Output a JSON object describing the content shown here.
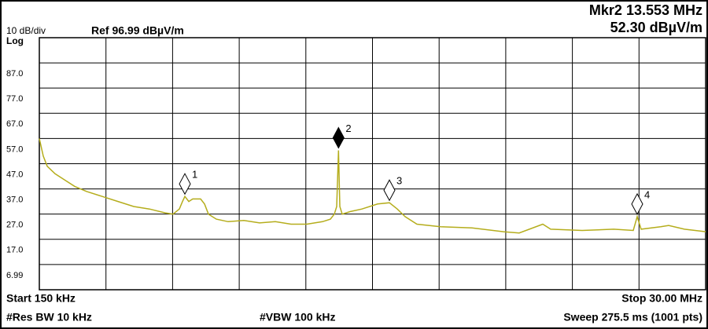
{
  "chart_data": {
    "type": "line",
    "marker_readout": [
      "Mkr2 13.553 MHz",
      "52.30 dBµV/m"
    ],
    "scale_label": "10 dB/div",
    "ref_label": "Ref 96.99 dBµV/m",
    "scale_type_label": "Log",
    "start_label": "Start 150 kHz",
    "stop_label": "Stop 30.00 MHz",
    "rbw_label": "#Res BW 10 kHz",
    "vbw_label": "#VBW 100 kHz",
    "sweep_label": "Sweep  275.5 ms (1001 pts)",
    "xlim": [
      0.15,
      30
    ],
    "ylim": [
      -3.01,
      96.99
    ],
    "yticks": [
      {
        "value": 87,
        "label": "87.0"
      },
      {
        "value": 77,
        "label": "77.0"
      },
      {
        "value": 67,
        "label": "67.0"
      },
      {
        "value": 57,
        "label": "57.0"
      },
      {
        "value": 47,
        "label": "47.0"
      },
      {
        "value": 37,
        "label": "37.0"
      },
      {
        "value": 27,
        "label": "27.0"
      },
      {
        "value": 17,
        "label": "17.0"
      },
      6.99
    ],
    "grid": true,
    "x": [
      0.15,
      0.326,
      0.502,
      0.855,
      1.207,
      1.736,
      2.265,
      2.969,
      3.674,
      4.379,
      5.084,
      5.789,
      6.141,
      6.423,
      6.564,
      6.67,
      6.846,
      7.022,
      7.375,
      7.551,
      7.727,
      8.08,
      8.608,
      9.313,
      10.018,
      10.723,
      11.427,
      12.132,
      12.837,
      13.19,
      13.366,
      13.471,
      13.553,
      13.612,
      13.718,
      14.07,
      14.599,
      15.304,
      15.833,
      16.185,
      16.538,
      17.066,
      18.124,
      19.533,
      20.943,
      21.648,
      22.705,
      23.057,
      24.467,
      25.877,
      26.758,
      26.934,
      27.11,
      27.991,
      28.343,
      29.048,
      30.0
    ],
    "series": [
      {
        "color": "#b5ad1c",
        "values": [
          57,
          50,
          46,
          43,
          41,
          38,
          36,
          34,
          32,
          30,
          29,
          27.5,
          27,
          29,
          32,
          34,
          32,
          33,
          33,
          31,
          27,
          25,
          24,
          24.5,
          23.5,
          24,
          23,
          23,
          24,
          25,
          27,
          30,
          52.3,
          30,
          27,
          28,
          29,
          31,
          31.5,
          29,
          26,
          23,
          22,
          21.5,
          20,
          19.5,
          23,
          21,
          20.5,
          21,
          20.5,
          26,
          21,
          22,
          22.5,
          21,
          20
        ]
      }
    ],
    "markers": [
      {
        "label": "1",
        "x": 6.67,
        "value": 34,
        "fill": "#ffffff"
      },
      {
        "label": "2",
        "x": 13.553,
        "value": 52.3,
        "fill": "#000000"
      },
      {
        "label": "3",
        "x": 15.833,
        "value": 31.5,
        "fill": "#ffffff"
      },
      {
        "label": "4",
        "x": 26.934,
        "value": 26,
        "fill": "#ffffff"
      }
    ]
  }
}
